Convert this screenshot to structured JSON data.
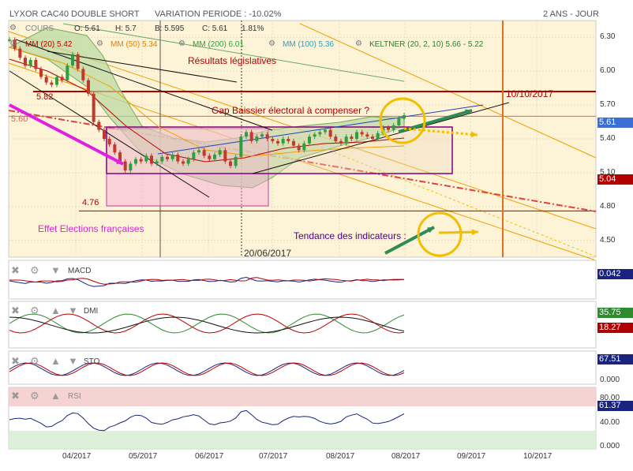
{
  "header": {
    "title": "LYXOR CAC40 DOUBLE SHORT",
    "variation": "VARIATION PERIODE : -10.02%",
    "period": "2 ANS - JOUR"
  },
  "legend": {
    "cours": "COURS",
    "o": "O: 5.61",
    "h": "H: 5.7",
    "b": "B: 5.595",
    "c": "C: 5.61",
    "chg": "1.81%",
    "mm20": "MM (20)  5.42",
    "mm50": "MM (50)  5.34",
    "mm200": "MM (200)  6.01",
    "mm100": "MM (100)  5.36",
    "keltner": "KELTNER (20, 2, 10)  5.66 - 5.22"
  },
  "annotations": {
    "legislatives": "Résultats législatives",
    "gap": "Gap Baissier électoral à compenser ?",
    "elections": "Effet Elections françaises",
    "tendance": "Tendance des indicateurs :",
    "date1": "20/06/2017",
    "date2": "10/10/2017",
    "lvl582": "5.82",
    "lvl560": "5.60",
    "lvl476": "4.76"
  },
  "price_tags": {
    "last": "5.61",
    "low": "5.04"
  },
  "panels": {
    "macd": {
      "label": "MACD",
      "value": "0.042"
    },
    "dmi": {
      "label": "DMI",
      "value1": "35.75",
      "value2": "18.27"
    },
    "sto": {
      "label": "STO",
      "value": "67.51",
      "axis": "0.000"
    },
    "rsi": {
      "label": "RSI",
      "value": "61.37",
      "axis1": "80.00",
      "axis2": "40.00",
      "axis3": "0.000"
    }
  },
  "colors": {
    "price_bg": "#fdf3d6",
    "up": "#2e9e3e",
    "down": "#c0392b",
    "keltner_fill": "#b8d8a0",
    "tag_blue": "#3a6fd8",
    "tag_red": "#c0392b",
    "tag_green": "#2e8b2e",
    "tag_darkblue": "#1a237e",
    "magenta": "#e020e0",
    "darkred": "#b00000",
    "orange": "#f0a000"
  },
  "chart_data": {
    "type": "line",
    "x_ticks": [
      "04/2017",
      "05/2017",
      "06/2017",
      "07/2017",
      "08/2017",
      "08/2017",
      "09/2017",
      "10/2017"
    ],
    "y_ticks": [
      "6.30",
      "6.00",
      "5.70",
      "5.40",
      "5.10",
      "4.80",
      "4.50"
    ],
    "ylim": [
      4.35,
      6.45
    ],
    "levels": [
      5.82,
      5.6,
      4.76
    ],
    "close_series": {
      "name": "COURS",
      "values": [
        6.28,
        6.2,
        6.12,
        6.05,
        6.1,
        6.02,
        5.95,
        5.9,
        5.88,
        5.95,
        5.92,
        6.05,
        6.15,
        6.02,
        5.92,
        5.8,
        5.55,
        5.48,
        5.4,
        5.35,
        5.28,
        5.2,
        5.12,
        5.18,
        5.22,
        5.2,
        5.25,
        5.18,
        5.2,
        5.24,
        5.22,
        5.26,
        5.2,
        5.18,
        5.22,
        5.28,
        5.3,
        5.25,
        5.22,
        5.26,
        5.3,
        5.2,
        5.16,
        5.24,
        5.42,
        5.46,
        5.38,
        5.42,
        5.44,
        5.4,
        5.38,
        5.36,
        5.4,
        5.38,
        5.34,
        5.3,
        5.36,
        5.42,
        5.44,
        5.46,
        5.48,
        5.42,
        5.38,
        5.36,
        5.42,
        5.4,
        5.46,
        5.44,
        5.42,
        5.4,
        5.45,
        5.5,
        5.48,
        5.52,
        5.58,
        5.61
      ]
    }
  }
}
